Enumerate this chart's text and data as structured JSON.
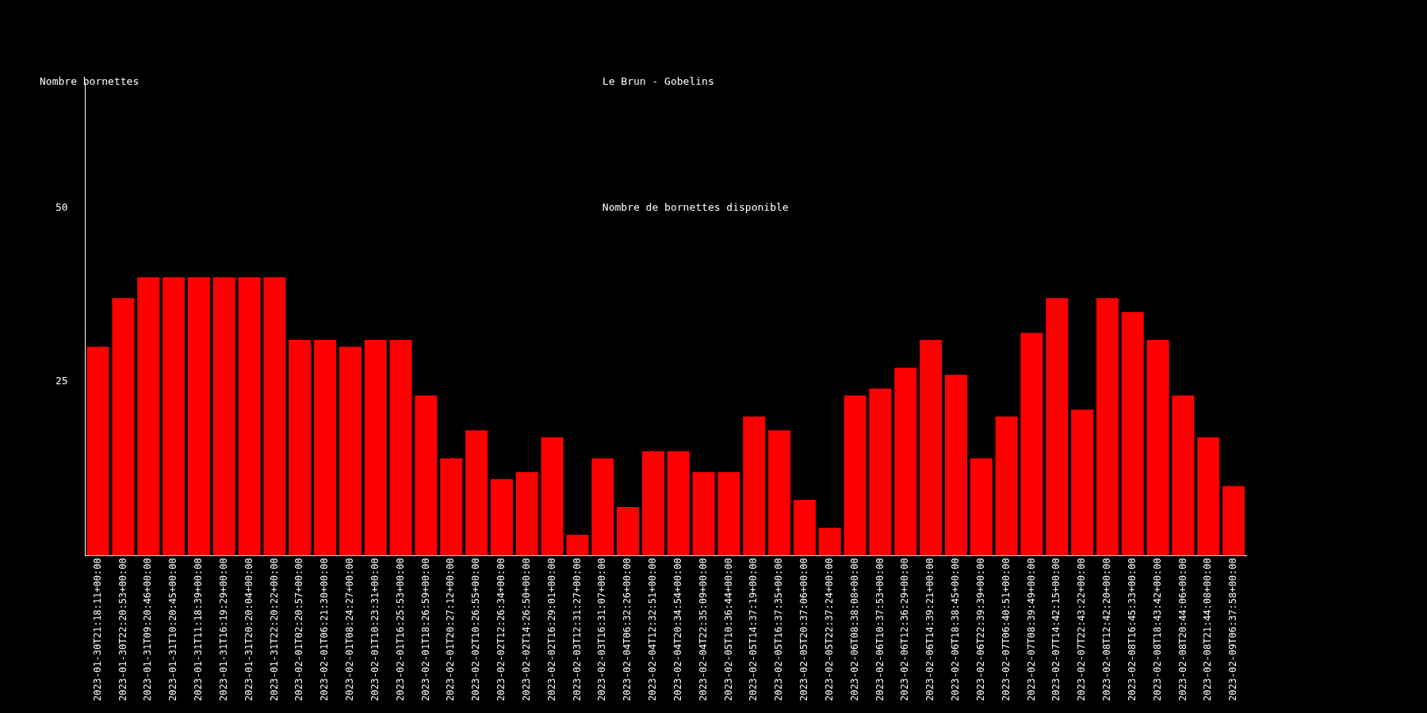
{
  "chart_data": {
    "type": "bar",
    "title": "Le Brun - Gobelins",
    "subtitle": "Nombre de bornettes disponible",
    "ylabel": "Nombre bornettes",
    "categories": [
      "2023-01-30T21:18:11+00:00",
      "2023-01-30T22:20:53+00:00",
      "2023-01-31T09:20:46+00:00",
      "2023-01-31T10:20:45+00:00",
      "2023-01-31T11:18:39+00:00",
      "2023-01-31T16:19:29+00:00",
      "2023-01-31T20:20:04+00:00",
      "2023-01-31T22:20:22+00:00",
      "2023-02-01T02:20:57+00:00",
      "2023-02-01T06:21:30+00:00",
      "2023-02-01T08:24:27+00:00",
      "2023-02-01T10:23:31+00:00",
      "2023-02-01T16:25:53+00:00",
      "2023-02-01T18:26:59+00:00",
      "2023-02-01T20:27:12+00:00",
      "2023-02-02T10:26:55+00:00",
      "2023-02-02T12:26:34+00:00",
      "2023-02-02T14:26:50+00:00",
      "2023-02-02T16:29:01+00:00",
      "2023-02-03T12:31:27+00:00",
      "2023-02-03T16:31:07+00:00",
      "2023-02-04T06:32:26+00:00",
      "2023-02-04T12:32:51+00:00",
      "2023-02-04T20:34:54+00:00",
      "2023-02-04T22:35:09+00:00",
      "2023-02-05T10:36:44+00:00",
      "2023-02-05T14:37:19+00:00",
      "2023-02-05T16:37:35+00:00",
      "2023-02-05T20:37:06+00:00",
      "2023-02-05T22:37:24+00:00",
      "2023-02-06T08:38:08+00:00",
      "2023-02-06T10:37:53+00:00",
      "2023-02-06T12:36:29+00:00",
      "2023-02-06T14:39:21+00:00",
      "2023-02-06T18:38:45+00:00",
      "2023-02-06T22:39:39+00:00",
      "2023-02-07T06:40:51+00:00",
      "2023-02-07T08:39:49+00:00",
      "2023-02-07T14:42:15+00:00",
      "2023-02-07T22:43:22+00:00",
      "2023-02-08T12:42:20+00:00",
      "2023-02-08T16:45:33+00:00",
      "2023-02-08T18:43:42+00:00",
      "2023-02-08T20:44:06+00:00",
      "2023-02-08T21:44:08+00:00",
      "2023-02-09T06:37:58+00:00"
    ],
    "values": [
      30,
      37,
      40,
      40,
      40,
      40,
      40,
      40,
      31,
      31,
      30,
      31,
      31,
      23,
      14,
      18,
      11,
      12,
      17,
      3,
      14,
      7,
      15,
      15,
      12,
      12,
      20,
      18,
      8,
      4,
      23,
      24,
      27,
      31,
      26,
      14,
      20,
      32,
      37,
      21,
      37,
      35,
      31,
      23,
      17,
      10
    ],
    "color": "#ff0000",
    "ylim": [
      0,
      68
    ],
    "yticks": [
      25,
      50
    ],
    "grid": false,
    "legend": false
  }
}
